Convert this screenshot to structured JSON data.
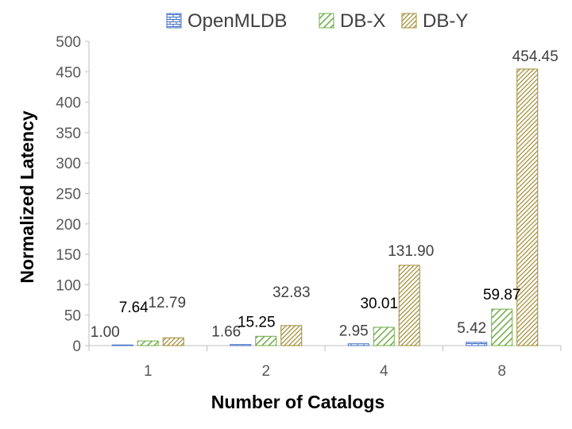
{
  "chart_data": {
    "type": "bar",
    "title": "",
    "xlabel": "Number of Catalogs",
    "ylabel": "Normalized Latency",
    "categories": [
      "1",
      "2",
      "4",
      "8"
    ],
    "ylim": [
      0,
      500
    ],
    "yticks": [
      "0",
      "50",
      "100",
      "150",
      "200",
      "250",
      "300",
      "350",
      "400",
      "450",
      "500"
    ],
    "grid": false,
    "legend_position": "top",
    "series": [
      {
        "name": "OpenMLDB",
        "values": [
          1.0,
          1.66,
          2.95,
          5.42
        ],
        "labels": [
          "1.00",
          "1.66",
          "2.95",
          "5.42"
        ],
        "color": "#4472c4",
        "pattern": "brick"
      },
      {
        "name": "DB-X",
        "values": [
          7.64,
          15.25,
          30.01,
          59.87
        ],
        "labels": [
          "7.64",
          "15.25",
          "30.01",
          "59.87"
        ],
        "color": "#70ad47",
        "pattern": "diagonal"
      },
      {
        "name": "DB-Y",
        "values": [
          12.79,
          32.83,
          131.9,
          454.45
        ],
        "labels": [
          "12.79",
          "32.83",
          "131.90",
          "454.45"
        ],
        "color": "#a08a2e",
        "pattern": "diagonal-dense"
      }
    ]
  }
}
